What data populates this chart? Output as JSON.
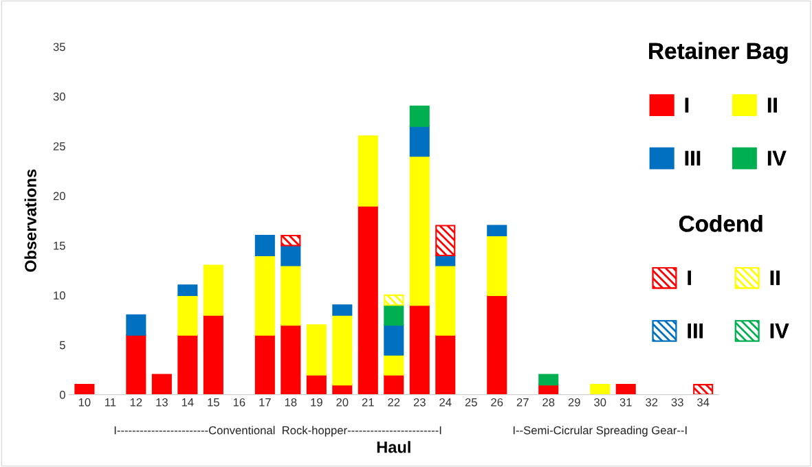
{
  "chart_data": {
    "type": "bar",
    "stacked": true,
    "xlabel": "Haul",
    "ylabel": "Observations",
    "categories": [
      "10",
      "11",
      "12",
      "13",
      "14",
      "15",
      "16",
      "17",
      "18",
      "19",
      "20",
      "21",
      "22",
      "23",
      "24",
      "25",
      "26",
      "27",
      "28",
      "29",
      "30",
      "31",
      "32",
      "33",
      "34"
    ],
    "legend_title": [
      "Retainer Bag",
      "Codend"
    ],
    "series": [
      {
        "name": "I",
        "color": "#ff0000",
        "values": [
          1,
          null,
          6,
          2,
          6,
          8,
          null,
          6,
          7,
          2,
          1,
          19,
          2,
          9,
          6,
          null,
          10,
          null,
          1,
          null,
          null,
          1,
          null,
          null,
          null
        ]
      },
      {
        "name": "II",
        "color": "#ffff00",
        "values": [
          null,
          null,
          null,
          null,
          4,
          5,
          null,
          8,
          6,
          5,
          7,
          7,
          2,
          15,
          7,
          null,
          6,
          null,
          null,
          null,
          1,
          null,
          null,
          null,
          null
        ]
      },
      {
        "name": "III",
        "color": "#0070c0",
        "values": [
          null,
          null,
          2,
          null,
          1,
          null,
          null,
          2,
          2,
          null,
          1,
          null,
          3,
          3,
          1,
          null,
          1,
          null,
          null,
          null,
          null,
          null,
          null,
          null,
          null
        ]
      },
      {
        "name": "IV",
        "color": "#00b050",
        "values": [
          null,
          null,
          null,
          null,
          null,
          null,
          null,
          null,
          null,
          null,
          null,
          null,
          2,
          2,
          null,
          null,
          null,
          null,
          1,
          null,
          null,
          null,
          null,
          null,
          null
        ]
      },
      {
        "name": "I",
        "color": "#ff0000",
        "values": [
          null,
          null,
          null,
          null,
          null,
          null,
          null,
          null,
          1,
          null,
          null,
          null,
          null,
          null,
          3,
          null,
          null,
          null,
          null,
          null,
          null,
          null,
          null,
          null,
          1
        ]
      },
      {
        "name": "II",
        "color": "#ffff00",
        "values": [
          null,
          null,
          null,
          null,
          null,
          null,
          null,
          null,
          null,
          null,
          null,
          null,
          1,
          null,
          null,
          null,
          null,
          null,
          null,
          null,
          null,
          null,
          null,
          null,
          null
        ]
      },
      {
        "name": "III",
        "color": "#0070c0",
        "values": [
          null,
          null,
          null,
          null,
          null,
          null,
          null,
          null,
          null,
          null,
          null,
          null,
          null,
          null,
          null,
          null,
          null,
          null,
          null,
          null,
          null,
          null,
          null,
          null,
          null
        ]
      },
      {
        "name": "IV",
        "color": "#00b050",
        "values": [
          null,
          null,
          null,
          null,
          null,
          null,
          null,
          null,
          null,
          null,
          null,
          null,
          null,
          null,
          null,
          null,
          null,
          null,
          null,
          null,
          null,
          null,
          null,
          null,
          null
        ]
      }
    ],
    "ylim": [
      0,
      35
    ],
    "yticks": [
      0,
      5,
      10,
      15,
      20,
      25,
      30,
      35
    ],
    "grid": false,
    "legend": "right",
    "annotations": [
      "I------------------------Conventional  Rock-hopper------------------------I",
      "I--Semi-Cicrular Spreading Gear--I"
    ]
  }
}
